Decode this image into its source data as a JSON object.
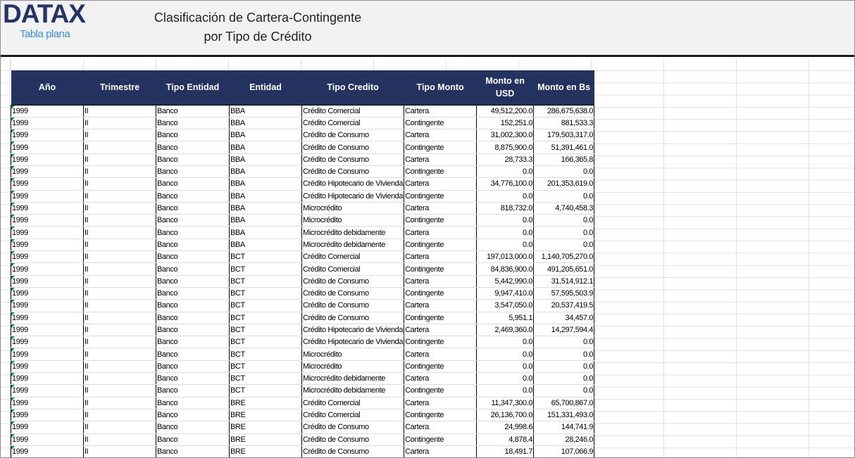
{
  "header": {
    "logo": "DATAX",
    "subtitle": "Tabla plana",
    "title_line1": "Clasificación de Cartera-Contingente",
    "title_line2": "por Tipo de Crédito"
  },
  "table": {
    "columns": [
      "Año",
      "Trimestre",
      "Tipo Entidad",
      "Entidad",
      "Tipo Credito",
      "Tipo Monto",
      "Monto en USD",
      "Monto en Bs"
    ],
    "rows": [
      [
        "1999",
        "II",
        "Banco",
        "BBA",
        "Crédito Comercial",
        "Cartera",
        "49,512,200.0",
        "286,675,638.0"
      ],
      [
        "1999",
        "II",
        "Banco",
        "BBA",
        "Crédito Comercial",
        "Contingente",
        "152,251.0",
        "881,533.3"
      ],
      [
        "1999",
        "II",
        "Banco",
        "BBA",
        "Crédito de Consumo",
        "Cartera",
        "31,002,300.0",
        "179,503,317.0"
      ],
      [
        "1999",
        "II",
        "Banco",
        "BBA",
        "Crédito de Consumo",
        "Contingente",
        "8,875,900.0",
        "51,391,461.0"
      ],
      [
        "1999",
        "II",
        "Banco",
        "BBA",
        "Crédito de Consumo",
        "Cartera",
        "28,733.3",
        "166,365.8"
      ],
      [
        "1999",
        "II",
        "Banco",
        "BBA",
        "Crédito de Consumo",
        "Contingente",
        "0.0",
        "0.0"
      ],
      [
        "1999",
        "II",
        "Banco",
        "BBA",
        "Crédito Hipotecario de Vivienda",
        "Cartera",
        "34,776,100.0",
        "201,353,619.0"
      ],
      [
        "1999",
        "II",
        "Banco",
        "BBA",
        "Crédito Hipotecario de Vivienda",
        "Contingente",
        "0.0",
        "0.0"
      ],
      [
        "1999",
        "II",
        "Banco",
        "BBA",
        "Microcrédito",
        "Cartera",
        "818,732.0",
        "4,740,458.3"
      ],
      [
        "1999",
        "II",
        "Banco",
        "BBA",
        "Microcrédito",
        "Contingente",
        "0.0",
        "0.0"
      ],
      [
        "1999",
        "II",
        "Banco",
        "BBA",
        "Microcrédito debidamente",
        "Cartera",
        "0.0",
        "0.0"
      ],
      [
        "1999",
        "II",
        "Banco",
        "BBA",
        "Microcrédito debidamente",
        "Contingente",
        "0.0",
        "0.0"
      ],
      [
        "1999",
        "II",
        "Banco",
        "BCT",
        "Crédito Comercial",
        "Cartera",
        "197,013,000.0",
        "1,140,705,270.0"
      ],
      [
        "1999",
        "II",
        "Banco",
        "BCT",
        "Crédito Comercial",
        "Contingente",
        "84,836,900.0",
        "491,205,651.0"
      ],
      [
        "1999",
        "II",
        "Banco",
        "BCT",
        "Crédito de Consumo",
        "Cartera",
        "5,442,990.0",
        "31,514,912.1"
      ],
      [
        "1999",
        "II",
        "Banco",
        "BCT",
        "Crédito de Consumo",
        "Contingente",
        "9,947,410.0",
        "57,595,503.9"
      ],
      [
        "1999",
        "II",
        "Banco",
        "BCT",
        "Crédito de Consumo",
        "Cartera",
        "3,547,050.0",
        "20,537,419.5"
      ],
      [
        "1999",
        "II",
        "Banco",
        "BCT",
        "Crédito de Consumo",
        "Contingente",
        "5,951.1",
        "34,457.0"
      ],
      [
        "1999",
        "II",
        "Banco",
        "BCT",
        "Crédito Hipotecario de Vivienda",
        "Cartera",
        "2,469,360.0",
        "14,297,594.4"
      ],
      [
        "1999",
        "II",
        "Banco",
        "BCT",
        "Crédito Hipotecario de Vivienda",
        "Contingente",
        "0.0",
        "0.0"
      ],
      [
        "1999",
        "II",
        "Banco",
        "BCT",
        "Microcrédito",
        "Cartera",
        "0.0",
        "0.0"
      ],
      [
        "1999",
        "II",
        "Banco",
        "BCT",
        "Microcrédito",
        "Contingente",
        "0.0",
        "0.0"
      ],
      [
        "1999",
        "II",
        "Banco",
        "BCT",
        "Microcrédito debidamente",
        "Cartera",
        "0.0",
        "0.0"
      ],
      [
        "1999",
        "II",
        "Banco",
        "BCT",
        "Microcrédito debidamente",
        "Contingente",
        "0.0",
        "0.0"
      ],
      [
        "1999",
        "II",
        "Banco",
        "BRE",
        "Crédito Comercial",
        "Cartera",
        "11,347,300.0",
        "65,700,867.0"
      ],
      [
        "1999",
        "II",
        "Banco",
        "BRE",
        "Crédito Comercial",
        "Contingente",
        "26,136,700.0",
        "151,331,493.0"
      ],
      [
        "1999",
        "II",
        "Banco",
        "BRE",
        "Crédito de Consumo",
        "Cartera",
        "24,998.6",
        "144,741.9"
      ],
      [
        "1999",
        "II",
        "Banco",
        "BRE",
        "Crédito de Consumo",
        "Contingente",
        "4,878.4",
        "28,246.0"
      ],
      [
        "1999",
        "II",
        "Banco",
        "BRE",
        "Crédito de Consumo",
        "Cartera",
        "18,491.7",
        "107,066.9"
      ]
    ]
  },
  "colors": {
    "header_bg": "#24325f",
    "logo": "#253465",
    "subtitle": "#3f8fd0"
  }
}
